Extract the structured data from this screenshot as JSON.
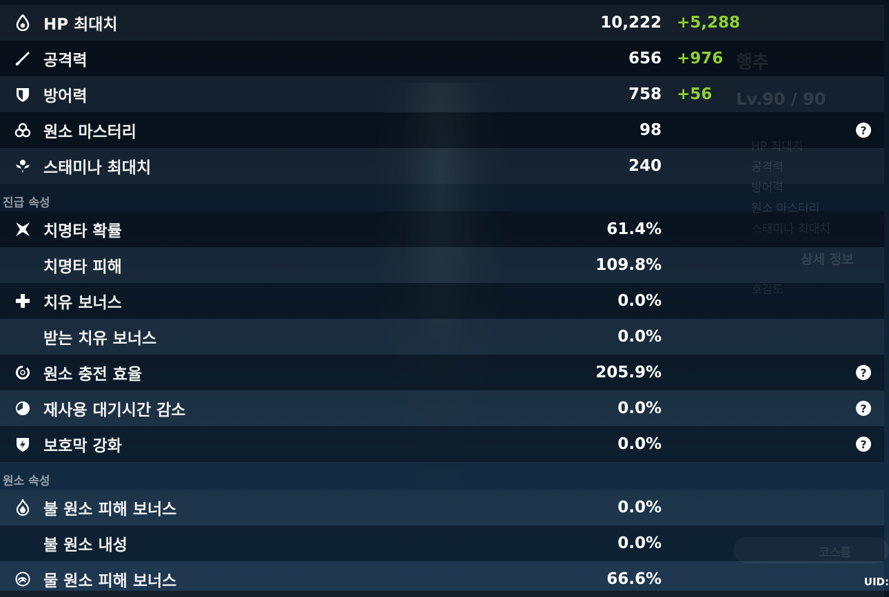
{
  "sections": {
    "advanced_title": "진급 속성",
    "elemental_title": "원소 속성"
  },
  "base_stats": [
    {
      "icon": "hp-drop-icon",
      "label": "HP 최대치",
      "value": "10,222",
      "bonus": "+5,288",
      "help": false
    },
    {
      "icon": "sword-icon",
      "label": "공격력",
      "value": "656",
      "bonus": "+976",
      "help": false
    },
    {
      "icon": "shield-icon",
      "label": "방어력",
      "value": "758",
      "bonus": "+56",
      "help": false
    },
    {
      "icon": "elemental-mastery-icon",
      "label": "원소 마스터리",
      "value": "98",
      "bonus": "",
      "help": true
    },
    {
      "icon": "stamina-icon",
      "label": "스태미나 최대치",
      "value": "240",
      "bonus": "",
      "help": false
    }
  ],
  "advanced_stats": [
    {
      "icon": "crit-star-icon",
      "label": "치명타 확률",
      "value": "61.4%",
      "help": false
    },
    {
      "icon": "",
      "label": "치명타 피해",
      "value": "109.8%",
      "help": false
    },
    {
      "icon": "healing-cross-icon",
      "label": "치유 보너스",
      "value": "0.0%",
      "help": false
    },
    {
      "icon": "",
      "label": "받는 치유 보너스",
      "value": "0.0%",
      "help": false
    },
    {
      "icon": "energy-recharge-icon",
      "label": "원소 충전 효율",
      "value": "205.9%",
      "help": true
    },
    {
      "icon": "cooldown-icon",
      "label": "재사용 대기시간 감소",
      "value": "0.0%",
      "help": true
    },
    {
      "icon": "shield-strength-icon",
      "label": "보호막 강화",
      "value": "0.0%",
      "help": true
    }
  ],
  "elemental_stats": [
    {
      "icon": "pyro-icon",
      "label": "불 원소 피해 보너스",
      "value": "0.0%",
      "help": false
    },
    {
      "icon": "",
      "label": "불 원소 내성",
      "value": "0.0%",
      "help": false
    },
    {
      "icon": "hydro-icon",
      "label": "물 원소 피해 보너스",
      "value": "66.6%",
      "help": false
    }
  ],
  "help_glyph": "?",
  "background_panel": {
    "character_name": "행추",
    "level": "Lv.90 / 90",
    "mini_stats": [
      "HP 최대치",
      "공격력",
      "방어력",
      "원소 마스터리",
      "스태미나 최대치"
    ],
    "details_button": "상세 정보",
    "friendship": "호감도",
    "costume_button": "코스튬",
    "uid_label": "UID:"
  },
  "colors": {
    "bonus": "#8fd032",
    "accent": "#ffffff"
  }
}
